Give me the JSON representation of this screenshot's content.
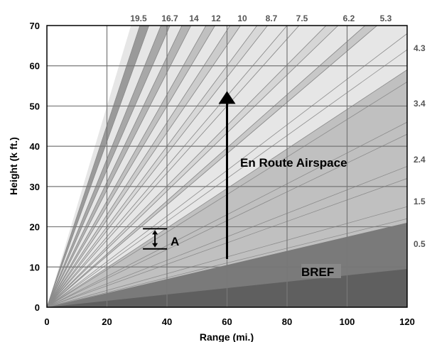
{
  "chart_data": {
    "type": "area",
    "xlabel": "Range (mi.)",
    "ylabel": "Height (k ft.)",
    "xlim": [
      0,
      120
    ],
    "ylim": [
      0,
      70
    ],
    "x_ticks": [
      0,
      20,
      40,
      60,
      80,
      100,
      120
    ],
    "y_ticks": [
      0,
      10,
      20,
      30,
      40,
      50,
      60,
      70
    ],
    "grid": true,
    "elevation_angles_top": [
      "19.5",
      "16.7",
      "14",
      "12",
      "10",
      "8.7",
      "7.5",
      "6.2",
      "5.3"
    ],
    "elevation_angles_right": [
      "4.3",
      "3.4",
      "2.4",
      "1.5",
      "0.5"
    ],
    "bands": [
      {
        "range_at_70k": 31,
        "range_at_70k_upper": 34,
        "shade": "#9a9a9a"
      },
      {
        "range_at_70k": 38,
        "range_at_70k_upper": 41,
        "shade": "#a8a8a8"
      },
      {
        "range_at_70k": 45,
        "range_at_70k_upper": 48,
        "shade": "#b4b4b4"
      },
      {
        "range_at_70k": 53,
        "range_at_70k_upper": 56,
        "shade": "#c0c0c0"
      },
      {
        "range_at_70k": 61,
        "range_at_70k_upper": 64.5,
        "shade": "#cccccc"
      },
      {
        "range_at_70k": 70,
        "range_at_70k_upper": 73.5,
        "shade": "#d8d8d8"
      },
      {
        "range_at_70k": 80,
        "range_at_70k_upper": 84,
        "shade": "#e2e2e2"
      },
      {
        "range_at_70k": 93,
        "range_at_70k_upper": 97,
        "shade": "#d6d6d6"
      },
      {
        "range_at_70k": 106,
        "range_at_70k_upper": 110,
        "shade": "#c8c8c8"
      }
    ],
    "bands_right": [
      {
        "height_at_120_low": 56,
        "height_at_120_high": 59,
        "shade": "#c0c0c0"
      },
      {
        "height_at_120_low": 43,
        "height_at_120_high": 46,
        "shade": "#b4b4b4"
      },
      {
        "height_at_120_low": 32,
        "height_at_120_high": 35,
        "shade": "#a8a8a8"
      },
      {
        "height_at_120_low": 22,
        "height_at_120_high": 25,
        "shade": "#9c9c9c"
      }
    ],
    "bref_upper_height_at_120": 21,
    "bref_lower_height_at_120": 9.5,
    "annotations": {
      "en_route_label": "En Route Airspace",
      "bref_label": "BREF",
      "a_label": "A",
      "arrow_range": 60,
      "arrow_height_from": 12,
      "arrow_height_to": 53,
      "a_range": 36,
      "a_height_low": 14.5,
      "a_height_high": 19.5
    }
  }
}
